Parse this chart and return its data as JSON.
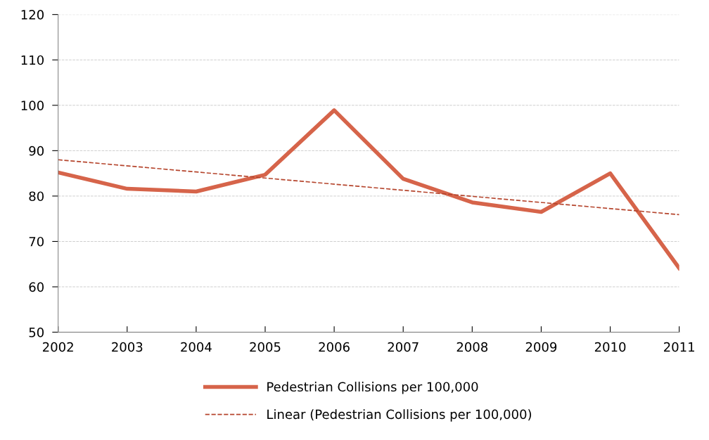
{
  "chart_data": {
    "type": "line",
    "x": [
      2002,
      2003,
      2004,
      2005,
      2006,
      2007,
      2008,
      2009,
      2010,
      2011
    ],
    "series": [
      {
        "name": "Pedestrian Collisions per 100,000",
        "color": "#d6644a",
        "line_style": "solid",
        "values": [
          85.2,
          81.6,
          81.0,
          84.7,
          98.9,
          83.8,
          78.6,
          76.5,
          85.0,
          64.1
        ]
      },
      {
        "name": "Linear (Pedestrian Collisions per 100,000)",
        "color": "#b5452d",
        "line_style": "dashed",
        "x": [
          2002,
          2011
        ],
        "values": [
          88.0,
          75.9
        ]
      }
    ],
    "xlim": [
      2002,
      2011
    ],
    "xticks": [
      2002,
      2003,
      2004,
      2005,
      2006,
      2007,
      2008,
      2009,
      2010,
      2011
    ],
    "ylim": [
      50,
      120
    ],
    "yticks": [
      50,
      60,
      70,
      80,
      90,
      100,
      110,
      120
    ],
    "grid": "y",
    "legend": "bottom",
    "marker": "none"
  }
}
